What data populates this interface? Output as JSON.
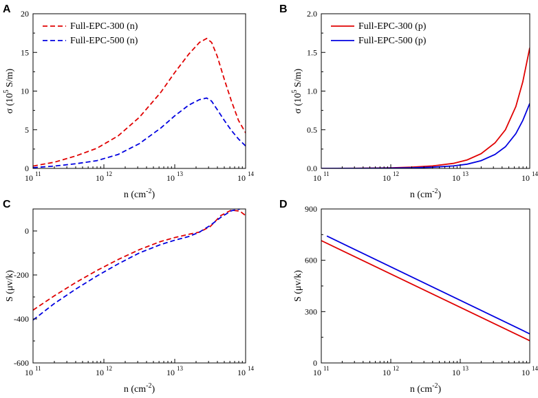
{
  "chart_data": [
    {
      "panel": "A",
      "type": "line",
      "xscale": "log10",
      "xlim": [
        11,
        14
      ],
      "ylim": [
        0,
        20
      ],
      "xticks": [
        11,
        12,
        13,
        14
      ],
      "xtick_labels": [
        "10",
        "10",
        "10",
        "10"
      ],
      "xtick_exponents": [
        "11",
        "12",
        "13",
        "14"
      ],
      "yticks": [
        0,
        5,
        10,
        15,
        20
      ],
      "ytick_labels": [
        "0",
        "5",
        "10",
        "15",
        "20"
      ],
      "xlabel": "n (cm",
      "xlabel_exp": "-2",
      "xlabel_tail": ")",
      "ylabel": "σ (10",
      "ylabel_exp": "5",
      "ylabel_tail": " S/m)",
      "series": [
        {
          "name": "Full-EPC-300 (n)",
          "color": "#e00000",
          "dash": true,
          "x": [
            11.0,
            11.3,
            11.6,
            11.9,
            12.2,
            12.5,
            12.8,
            13.0,
            13.2,
            13.35,
            13.45,
            13.52,
            13.6,
            13.7,
            13.8,
            13.9,
            14.0
          ],
          "y": [
            0.3,
            0.8,
            1.6,
            2.6,
            4.2,
            6.6,
            9.8,
            12.4,
            14.8,
            16.3,
            16.8,
            16.3,
            14.5,
            11.5,
            8.7,
            6.2,
            4.6
          ]
        },
        {
          "name": "Full-EPC-500 (n)",
          "color": "#0000e0",
          "dash": true,
          "x": [
            11.0,
            11.3,
            11.6,
            11.9,
            12.2,
            12.5,
            12.8,
            13.0,
            13.2,
            13.35,
            13.45,
            13.52,
            13.6,
            13.7,
            13.8,
            13.9,
            14.0
          ],
          "y": [
            0.1,
            0.3,
            0.6,
            1.0,
            1.8,
            3.2,
            5.2,
            6.8,
            8.2,
            8.9,
            9.1,
            8.7,
            7.6,
            6.2,
            4.9,
            3.8,
            2.9
          ]
        }
      ],
      "legend_position": "top-left"
    },
    {
      "panel": "B",
      "type": "line",
      "xscale": "log10",
      "xlim": [
        11,
        14
      ],
      "ylim": [
        0,
        2.0
      ],
      "xticks": [
        11,
        12,
        13,
        14
      ],
      "xtick_labels": [
        "10",
        "10",
        "10",
        "10"
      ],
      "xtick_exponents": [
        "11",
        "12",
        "13",
        "14"
      ],
      "yticks": [
        0,
        0.5,
        1.0,
        1.5,
        2.0
      ],
      "ytick_labels": [
        "0.0",
        "0.5",
        "1.0",
        "1.5",
        "2.0"
      ],
      "xlabel": "n (cm",
      "xlabel_exp": "-2",
      "xlabel_tail": ")",
      "ylabel": "σ (10",
      "ylabel_exp": "5",
      "ylabel_tail": " S/m)",
      "series": [
        {
          "name": "Full-EPC-300 (p)",
          "color": "#e00000",
          "dash": false,
          "x": [
            11.0,
            11.5,
            12.0,
            12.3,
            12.6,
            12.9,
            13.1,
            13.3,
            13.5,
            13.65,
            13.8,
            13.9,
            14.0
          ],
          "y": [
            0.0,
            0.002,
            0.008,
            0.016,
            0.032,
            0.065,
            0.11,
            0.19,
            0.33,
            0.5,
            0.8,
            1.12,
            1.56
          ]
        },
        {
          "name": "Full-EPC-500 (p)",
          "color": "#0000e0",
          "dash": false,
          "x": [
            11.0,
            11.5,
            12.0,
            12.3,
            12.6,
            12.9,
            13.1,
            13.3,
            13.5,
            13.65,
            13.8,
            13.9,
            14.0
          ],
          "y": [
            0.0,
            0.001,
            0.004,
            0.008,
            0.016,
            0.032,
            0.055,
            0.1,
            0.18,
            0.28,
            0.45,
            0.62,
            0.84
          ]
        }
      ],
      "legend_position": "top-left"
    },
    {
      "panel": "C",
      "type": "line",
      "xscale": "log10",
      "xlim": [
        11,
        14
      ],
      "ylim": [
        -600,
        100
      ],
      "xticks": [
        11,
        12,
        13,
        14
      ],
      "xtick_labels": [
        "10",
        "10",
        "10",
        "10"
      ],
      "xtick_exponents": [
        "11",
        "12",
        "13",
        "14"
      ],
      "yticks": [
        -600,
        -400,
        -200,
        0
      ],
      "ytick_labels": [
        "-600",
        "-400",
        "-200",
        "0"
      ],
      "xlabel": "n (cm",
      "xlabel_exp": "-2",
      "xlabel_tail": ")",
      "ylabel": "S (μv/k)",
      "ylabel_exp": "",
      "ylabel_tail": "",
      "series": [
        {
          "name": "Full-EPC-300 (n)",
          "color": "#e00000",
          "dash": true,
          "x": [
            11.0,
            11.3,
            11.6,
            11.9,
            12.2,
            12.5,
            12.8,
            13.0,
            13.2,
            13.35,
            13.5,
            13.65,
            13.8,
            13.92,
            14.0
          ],
          "y": [
            -360,
            -295,
            -235,
            -180,
            -130,
            -85,
            -48,
            -30,
            -15,
            -5,
            20,
            70,
            95,
            90,
            70
          ]
        },
        {
          "name": "Full-EPC-500 (n)",
          "color": "#0000e0",
          "dash": true,
          "x": [
            11.0,
            11.3,
            11.6,
            11.9,
            12.2,
            12.5,
            12.8,
            13.0,
            13.2,
            13.35,
            13.5,
            13.65,
            13.8,
            13.92
          ],
          "y": [
            -405,
            -330,
            -265,
            -205,
            -150,
            -100,
            -62,
            -42,
            -25,
            -5,
            25,
            62,
            92,
            100
          ]
        }
      ]
    },
    {
      "panel": "D",
      "type": "line",
      "xscale": "log10",
      "xlim": [
        11,
        14
      ],
      "ylim": [
        0,
        900
      ],
      "xticks": [
        11,
        12,
        13,
        14
      ],
      "xtick_labels": [
        "10",
        "10",
        "10",
        "10"
      ],
      "xtick_exponents": [
        "11",
        "12",
        "13",
        "14"
      ],
      "yticks": [
        0,
        300,
        600,
        900
      ],
      "ytick_labels": [
        "0",
        "300",
        "600",
        "900"
      ],
      "xlabel": "n (cm",
      "xlabel_exp": "-2",
      "xlabel_tail": ")",
      "ylabel": "S (μv/k)",
      "ylabel_exp": "",
      "ylabel_tail": "",
      "series": [
        {
          "name": "Full-EPC-300 (p)",
          "color": "#e00000",
          "dash": false,
          "x": [
            11.0,
            14.0
          ],
          "y": [
            715,
            130
          ]
        },
        {
          "name": "Full-EPC-500 (p)",
          "color": "#0000e0",
          "dash": false,
          "x": [
            11.08,
            14.0
          ],
          "y": [
            742,
            170
          ]
        }
      ]
    }
  ]
}
